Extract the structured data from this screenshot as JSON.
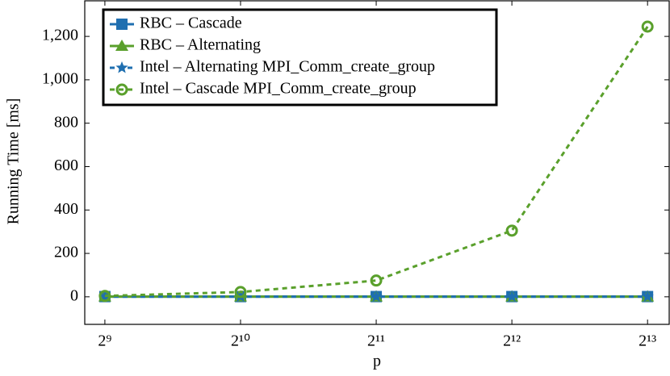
{
  "chart_data": {
    "type": "line",
    "x_label": "p",
    "y_label": "Running Time [ms]",
    "x": [
      512,
      1024,
      2048,
      4096,
      8192
    ],
    "xscale": "log2",
    "xlim": [
      462,
      9150
    ],
    "xticks": [
      {
        "value": 512,
        "label": "2⁹"
      },
      {
        "value": 1024,
        "label": "2¹⁰"
      },
      {
        "value": 2048,
        "label": "2¹¹"
      },
      {
        "value": 4096,
        "label": "2¹²"
      },
      {
        "value": 8192,
        "label": "2¹³"
      }
    ],
    "ylim": [
      -127,
      1364
    ],
    "yticks": [
      0,
      200,
      400,
      600,
      800,
      {
        "value": 1000,
        "label": "1,000"
      },
      {
        "value": 1200,
        "label": "1,200"
      }
    ],
    "legend": "upper left",
    "series": [
      {
        "name": "RBC – Cascade",
        "color": "#1f6fb0",
        "marker": "square",
        "linestyle": "solid",
        "values": [
          1,
          1,
          1,
          1,
          1
        ]
      },
      {
        "name": "RBC – Alternating",
        "color": "#5aa02c",
        "marker": "triangle",
        "linestyle": "solid",
        "values": [
          1,
          1,
          1,
          1,
          1
        ]
      },
      {
        "name": "Intel – Alternating MPI_Comm_create_group",
        "color": "#1f6fb0",
        "marker": "star",
        "linestyle": "dashed",
        "values": [
          1,
          1,
          1,
          1,
          1
        ]
      },
      {
        "name": "Intel – Cascade MPI_Comm_create_group",
        "color": "#5aa02c",
        "marker": "circle",
        "linestyle": "dashed",
        "values": [
          4,
          22,
          75,
          305,
          1245
        ]
      }
    ]
  }
}
